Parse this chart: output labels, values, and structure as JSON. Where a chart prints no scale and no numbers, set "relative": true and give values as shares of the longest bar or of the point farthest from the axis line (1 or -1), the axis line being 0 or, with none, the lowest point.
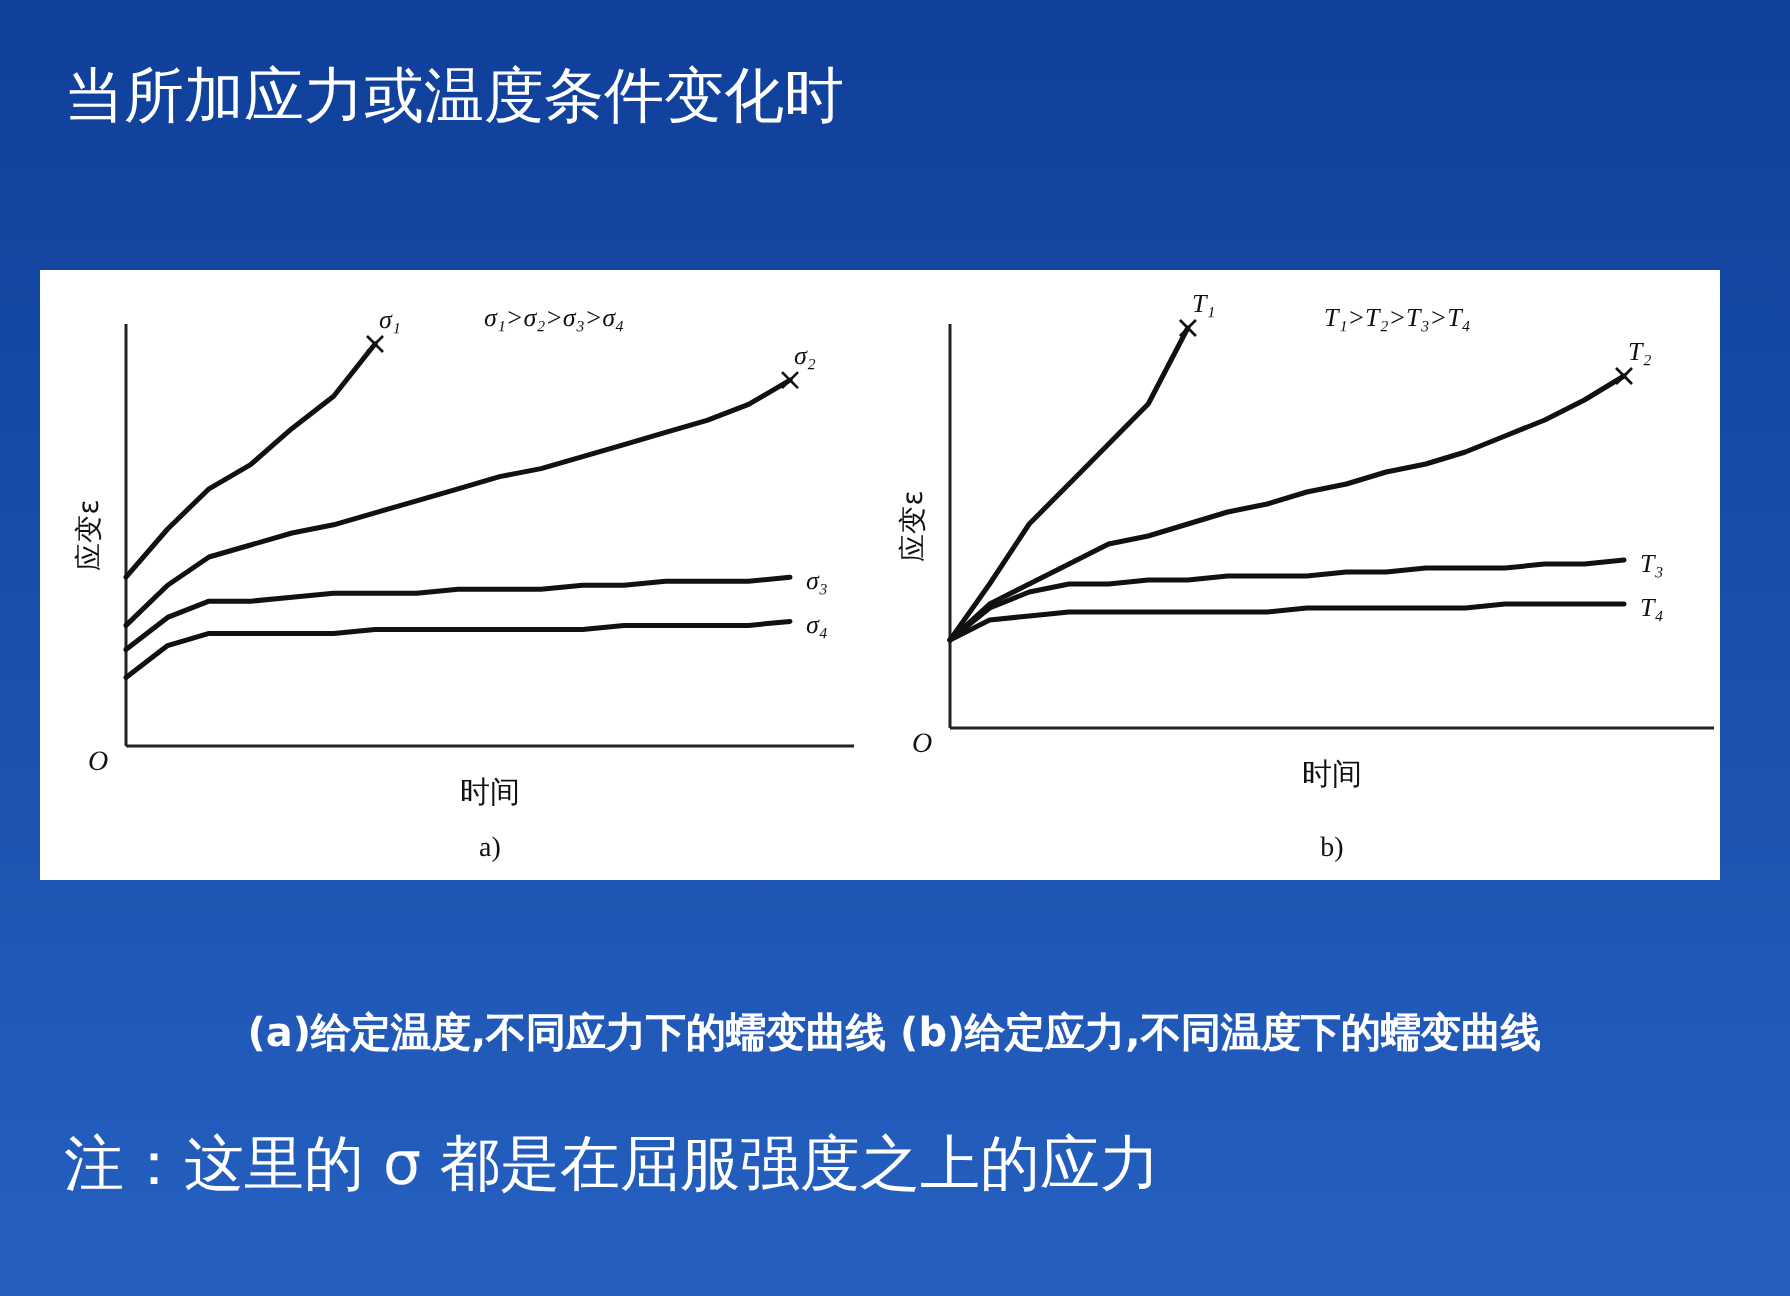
{
  "chart_data": [
    {
      "type": "other",
      "title": "当所加应力或温度条件变化时"
    },
    {
      "type": "line",
      "relative": true,
      "xlabel": "时间",
      "ylabel": "应变ε",
      "grid": false,
      "marker": "none",
      "line_style": "solid",
      "categories": [
        null,
        null,
        null,
        null,
        null,
        null,
        null,
        null,
        null,
        null,
        null,
        null,
        null,
        null,
        null,
        null,
        null
      ],
      "series": [
        {
          "name": "σ₁",
          "color": "#111111",
          "values": [
            0.42,
            0.54,
            0.64,
            0.7,
            0.79,
            0.87,
            1.0,
            null,
            null,
            null,
            null,
            null,
            null,
            null,
            null,
            null,
            null
          ]
        },
        {
          "name": "σ₂",
          "color": "#111111",
          "values": [
            0.3,
            0.4,
            0.47,
            0.5,
            0.53,
            0.55,
            0.58,
            0.61,
            0.64,
            0.67,
            0.69,
            0.72,
            0.75,
            0.78,
            0.81,
            0.85,
            0.91
          ]
        },
        {
          "name": "σ₃",
          "color": "#111111",
          "values": [
            0.24,
            0.32,
            0.36,
            0.36,
            0.37,
            0.38,
            0.38,
            0.38,
            0.39,
            0.39,
            0.39,
            0.4,
            0.4,
            0.41,
            0.41,
            0.41,
            0.42
          ]
        },
        {
          "name": "σ₄",
          "color": "#111111",
          "values": [
            0.17,
            0.25,
            0.28,
            0.28,
            0.28,
            0.28,
            0.29,
            0.29,
            0.29,
            0.29,
            0.29,
            0.29,
            0.3,
            0.3,
            0.3,
            0.3,
            0.31
          ]
        }
      ],
      "annotations": [
        "σ₁>σ₂>σ₃>σ₄",
        "O",
        "a)"
      ]
    },
    {
      "type": "line",
      "relative": true,
      "xlabel": "时间",
      "ylabel": "应变ε",
      "grid": false,
      "marker": "none",
      "line_style": "solid",
      "categories": [
        null,
        null,
        null,
        null,
        null,
        null,
        null,
        null,
        null,
        null,
        null,
        null,
        null,
        null,
        null,
        null,
        null,
        null
      ],
      "series": [
        {
          "name": "T₁",
          "color": "#111111",
          "values": [
            0.22,
            0.36,
            0.51,
            0.61,
            0.71,
            0.81,
            1.0,
            null,
            null,
            null,
            null,
            null,
            null,
            null,
            null,
            null,
            null,
            null
          ]
        },
        {
          "name": "T₂",
          "color": "#111111",
          "values": [
            0.22,
            0.31,
            0.36,
            0.41,
            0.46,
            0.48,
            0.51,
            0.54,
            0.56,
            0.59,
            0.61,
            0.64,
            0.66,
            0.69,
            0.73,
            0.77,
            0.82,
            0.88
          ]
        },
        {
          "name": "T₃",
          "color": "#111111",
          "values": [
            0.22,
            0.3,
            0.34,
            0.36,
            0.36,
            0.37,
            0.37,
            0.38,
            0.38,
            0.38,
            0.39,
            0.39,
            0.4,
            0.4,
            0.4,
            0.41,
            0.41,
            0.42
          ]
        },
        {
          "name": "T₄",
          "color": "#111111",
          "values": [
            0.22,
            0.27,
            0.28,
            0.29,
            0.29,
            0.29,
            0.29,
            0.29,
            0.29,
            0.3,
            0.3,
            0.3,
            0.3,
            0.3,
            0.31,
            0.31,
            0.31,
            0.31
          ]
        }
      ],
      "annotations": [
        "T₁>T₂>T₃>T₄",
        "O",
        "b)"
      ]
    },
    {
      "type": "other",
      "annotations": [
        "(a)给定温度,不同应力下的蠕变曲线  (b)给定应力,不同温度下的蠕变曲线",
        "注：这里的 σ 都是在屈服强度之上的应力"
      ]
    }
  ]
}
